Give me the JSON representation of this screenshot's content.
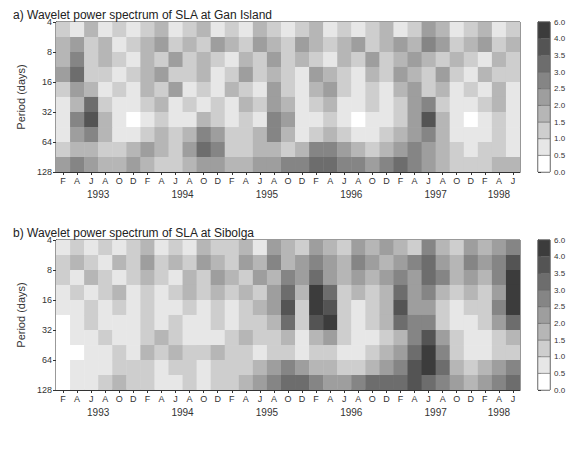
{
  "chart_data": [
    {
      "type": "heatmap",
      "title": "a) Wavelet power spectrum of SLA at Gan Island",
      "ylabel": "Period (days)",
      "log": "y",
      "xlim": [
        0,
        66
      ],
      "xticks": [
        {
          "value": 1,
          "label": "F"
        },
        {
          "value": 3,
          "label": "A"
        },
        {
          "value": 5,
          "label": "J"
        },
        {
          "value": 7,
          "label": "A"
        },
        {
          "value": 9,
          "label": "O"
        },
        {
          "value": 11,
          "label": "D"
        },
        {
          "value": 13,
          "label": "F"
        },
        {
          "value": 15,
          "label": "A"
        },
        {
          "value": 17,
          "label": "J"
        },
        {
          "value": 19,
          "label": "A"
        },
        {
          "value": 21,
          "label": "O"
        },
        {
          "value": 23,
          "label": "D"
        },
        {
          "value": 25,
          "label": "F"
        },
        {
          "value": 27,
          "label": "A"
        },
        {
          "value": 29,
          "label": "J"
        },
        {
          "value": 31,
          "label": "A"
        },
        {
          "value": 33,
          "label": "O"
        },
        {
          "value": 35,
          "label": "D"
        },
        {
          "value": 37,
          "label": "F"
        },
        {
          "value": 39,
          "label": "A"
        },
        {
          "value": 41,
          "label": "J"
        },
        {
          "value": 43,
          "label": "A"
        },
        {
          "value": 45,
          "label": "O"
        },
        {
          "value": 47,
          "label": "D"
        },
        {
          "value": 49,
          "label": "F"
        },
        {
          "value": 51,
          "label": "A"
        },
        {
          "value": 53,
          "label": "J"
        },
        {
          "value": 55,
          "label": "A"
        },
        {
          "value": 57,
          "label": "O"
        },
        {
          "value": 59,
          "label": "D"
        },
        {
          "value": 61,
          "label": "F"
        },
        {
          "value": 63,
          "label": "A"
        },
        {
          "value": 65,
          "label": "J"
        }
      ],
      "annotations": [
        {
          "text": "1993",
          "x": 6
        },
        {
          "text": "1994",
          "x": 18
        },
        {
          "text": "1995",
          "x": 30
        },
        {
          "text": "1996",
          "x": 42
        },
        {
          "text": "1997",
          "x": 54
        },
        {
          "text": "1998",
          "x": 63
        }
      ],
      "ylim": [
        4,
        128
      ],
      "yticks": [
        4,
        8,
        16,
        32,
        64,
        128
      ],
      "x_edges": [
        0,
        2,
        4,
        6,
        8,
        10,
        12,
        14,
        16,
        18,
        20,
        22,
        24,
        26,
        28,
        30,
        32,
        34,
        36,
        38,
        40,
        42,
        44,
        46,
        48,
        50,
        52,
        54,
        56,
        58,
        60,
        62,
        64,
        66
      ],
      "y_edges": [
        4,
        5.66,
        8,
        11.3,
        16,
        22.6,
        32,
        45.3,
        64,
        90.5,
        128
      ],
      "cells": [
        [
          1.0,
          0.5,
          1.5,
          0.5,
          1.0,
          0.5,
          1.0,
          1.5,
          0.5,
          1.0,
          1.5,
          0.5,
          1.0,
          0.5,
          1.5,
          1.0,
          0.5,
          1.0,
          1.5,
          0.5,
          1.0,
          0.5,
          1.0,
          1.5,
          0.5,
          1.0,
          2.0,
          1.5,
          0.5,
          1.0,
          1.5,
          0.5,
          1.0
        ],
        [
          1.5,
          2.0,
          1.0,
          1.5,
          0.5,
          1.0,
          1.5,
          2.0,
          1.0,
          1.5,
          1.0,
          2.0,
          1.5,
          1.0,
          2.0,
          1.5,
          1.0,
          2.0,
          1.5,
          1.0,
          1.5,
          2.0,
          1.0,
          1.5,
          2.0,
          1.5,
          2.5,
          2.0,
          1.0,
          1.5,
          2.0,
          1.0,
          1.5
        ],
        [
          1.5,
          2.5,
          1.0,
          1.5,
          1.0,
          0.5,
          1.5,
          1.0,
          2.0,
          1.0,
          1.5,
          1.0,
          0.5,
          1.5,
          1.0,
          2.0,
          1.0,
          1.5,
          1.0,
          0.5,
          1.5,
          1.0,
          2.0,
          1.0,
          1.5,
          2.0,
          1.5,
          1.0,
          1.5,
          1.0,
          0.5,
          1.5,
          1.0
        ],
        [
          2.0,
          3.0,
          1.0,
          1.0,
          0.5,
          1.0,
          1.5,
          2.0,
          1.0,
          1.0,
          1.5,
          0.5,
          1.0,
          2.0,
          1.0,
          1.5,
          1.0,
          0.5,
          2.0,
          1.5,
          1.0,
          0.5,
          1.5,
          1.0,
          2.0,
          1.5,
          1.0,
          2.0,
          1.0,
          0.5,
          1.5,
          1.0,
          1.0
        ],
        [
          1.0,
          2.0,
          1.5,
          0.5,
          1.0,
          0.5,
          1.5,
          1.0,
          2.0,
          0.5,
          1.0,
          0.5,
          1.5,
          1.0,
          0.5,
          2.0,
          1.0,
          0.5,
          1.5,
          2.0,
          1.0,
          0.5,
          1.0,
          0.5,
          1.5,
          2.0,
          1.0,
          1.5,
          0.5,
          1.0,
          0.5,
          1.5,
          0.5
        ],
        [
          0.5,
          1.5,
          3.0,
          1.0,
          0.5,
          0.5,
          1.0,
          1.5,
          0.5,
          1.0,
          0.5,
          1.0,
          0.5,
          1.5,
          1.0,
          2.0,
          1.5,
          0.5,
          1.0,
          1.5,
          0.5,
          0.5,
          1.0,
          0.5,
          1.0,
          2.0,
          2.5,
          1.0,
          0.5,
          0.5,
          1.0,
          1.5,
          0.5
        ],
        [
          0.5,
          2.5,
          3.5,
          1.5,
          0.5,
          0.0,
          0.5,
          1.0,
          0.5,
          0.5,
          1.5,
          1.0,
          0.5,
          1.0,
          0.5,
          2.5,
          2.0,
          0.5,
          0.5,
          1.0,
          0.5,
          0.0,
          0.5,
          0.5,
          1.0,
          2.0,
          3.5,
          1.5,
          0.5,
          0.0,
          0.5,
          1.0,
          0.5
        ],
        [
          0.5,
          2.0,
          2.5,
          1.5,
          0.5,
          0.5,
          1.0,
          1.5,
          1.0,
          1.5,
          2.5,
          2.0,
          1.0,
          1.0,
          1.5,
          2.5,
          1.5,
          0.5,
          1.0,
          1.5,
          1.0,
          0.5,
          0.5,
          1.0,
          1.5,
          2.0,
          2.5,
          1.5,
          0.5,
          0.5,
          0.5,
          1.0,
          0.5
        ],
        [
          1.0,
          1.5,
          1.5,
          1.0,
          1.0,
          1.5,
          2.0,
          1.5,
          1.0,
          2.0,
          3.0,
          2.5,
          1.0,
          1.0,
          1.5,
          1.5,
          1.0,
          1.5,
          2.5,
          2.5,
          2.0,
          1.5,
          1.0,
          1.5,
          2.0,
          2.5,
          2.0,
          1.5,
          1.0,
          0.5,
          1.0,
          1.0,
          0.5
        ],
        [
          2.0,
          2.5,
          2.0,
          1.5,
          1.5,
          2.0,
          1.5,
          1.0,
          1.0,
          1.5,
          2.0,
          2.0,
          1.5,
          1.5,
          2.0,
          2.0,
          2.5,
          2.5,
          3.0,
          3.0,
          2.5,
          2.5,
          2.0,
          2.5,
          3.0,
          2.5,
          2.0,
          1.5,
          1.0,
          1.0,
          1.0,
          1.5,
          1.5
        ]
      ],
      "colorbar": {
        "range": [
          0,
          6
        ],
        "ticks": [
          {
            "value": 0,
            "label": "0.0"
          },
          {
            "value": 0.5,
            "label": "0.5"
          },
          {
            "value": 1,
            "label": "1.0"
          },
          {
            "value": 1.5,
            "label": "1.5"
          },
          {
            "value": 2,
            "label": "2.0"
          },
          {
            "value": 2.5,
            "label": "2.5"
          },
          {
            "value": 3,
            "label": "3.0"
          },
          {
            "value": 3.5,
            "label": "3.5"
          },
          {
            "value": 4,
            "label": "4.0"
          },
          {
            "value": 6,
            "label": "6.0"
          }
        ]
      }
    },
    {
      "type": "heatmap",
      "title": "b) Wavelet power spectrum of SLA at Sibolga",
      "ylabel": "Period (days)",
      "log": "y",
      "xlim": [
        0,
        66
      ],
      "xticks": [
        {
          "value": 1,
          "label": "F"
        },
        {
          "value": 3,
          "label": "A"
        },
        {
          "value": 5,
          "label": "J"
        },
        {
          "value": 7,
          "label": "A"
        },
        {
          "value": 9,
          "label": "O"
        },
        {
          "value": 11,
          "label": "D"
        },
        {
          "value": 13,
          "label": "F"
        },
        {
          "value": 15,
          "label": "A"
        },
        {
          "value": 17,
          "label": "J"
        },
        {
          "value": 19,
          "label": "A"
        },
        {
          "value": 21,
          "label": "O"
        },
        {
          "value": 23,
          "label": "D"
        },
        {
          "value": 25,
          "label": "F"
        },
        {
          "value": 27,
          "label": "A"
        },
        {
          "value": 29,
          "label": "J"
        },
        {
          "value": 31,
          "label": "A"
        },
        {
          "value": 33,
          "label": "O"
        },
        {
          "value": 35,
          "label": "D"
        },
        {
          "value": 37,
          "label": "F"
        },
        {
          "value": 39,
          "label": "A"
        },
        {
          "value": 41,
          "label": "J"
        },
        {
          "value": 43,
          "label": "A"
        },
        {
          "value": 45,
          "label": "O"
        },
        {
          "value": 47,
          "label": "D"
        },
        {
          "value": 49,
          "label": "F"
        },
        {
          "value": 51,
          "label": "A"
        },
        {
          "value": 53,
          "label": "J"
        },
        {
          "value": 55,
          "label": "A"
        },
        {
          "value": 57,
          "label": "O"
        },
        {
          "value": 59,
          "label": "D"
        },
        {
          "value": 61,
          "label": "F"
        },
        {
          "value": 63,
          "label": "A"
        },
        {
          "value": 65,
          "label": "J"
        }
      ],
      "annotations": [
        {
          "text": "1993",
          "x": 6
        },
        {
          "text": "1994",
          "x": 18
        },
        {
          "text": "1995",
          "x": 30
        },
        {
          "text": "1996",
          "x": 42
        },
        {
          "text": "1997",
          "x": 54
        },
        {
          "text": "1998",
          "x": 63
        }
      ],
      "ylim": [
        4,
        128
      ],
      "yticks": [
        4,
        8,
        16,
        32,
        64,
        128
      ],
      "x_edges": [
        0,
        2,
        4,
        6,
        8,
        10,
        12,
        14,
        16,
        18,
        20,
        22,
        24,
        26,
        28,
        30,
        32,
        34,
        36,
        38,
        40,
        42,
        44,
        46,
        48,
        50,
        52,
        54,
        56,
        58,
        60,
        62,
        64,
        66
      ],
      "y_edges": [
        4,
        5.66,
        8,
        11.3,
        16,
        22.6,
        32,
        45.3,
        64,
        90.5,
        128
      ],
      "cells": [
        [
          0.5,
          1.0,
          0.5,
          1.0,
          0.5,
          1.0,
          1.5,
          0.5,
          1.0,
          0.5,
          1.5,
          1.0,
          1.0,
          1.5,
          0.5,
          2.0,
          1.5,
          1.0,
          2.0,
          1.5,
          1.0,
          2.0,
          1.5,
          2.0,
          1.5,
          1.0,
          2.5,
          1.5,
          1.0,
          2.0,
          1.5,
          2.0,
          2.5
        ],
        [
          1.0,
          1.5,
          1.0,
          0.5,
          1.5,
          1.0,
          2.0,
          1.0,
          1.5,
          1.0,
          2.0,
          1.5,
          1.0,
          2.0,
          1.5,
          2.5,
          1.5,
          2.0,
          2.5,
          2.0,
          1.5,
          2.5,
          2.0,
          1.5,
          2.0,
          2.5,
          3.0,
          2.0,
          1.5,
          2.5,
          2.0,
          2.5,
          3.5
        ],
        [
          1.0,
          0.5,
          1.5,
          1.0,
          0.5,
          1.0,
          1.5,
          1.0,
          0.5,
          1.5,
          1.0,
          2.0,
          1.5,
          1.0,
          2.0,
          1.5,
          2.5,
          2.0,
          3.0,
          2.0,
          1.5,
          2.0,
          1.5,
          2.0,
          2.5,
          2.0,
          3.0,
          2.5,
          1.5,
          2.0,
          1.5,
          2.5,
          4.0
        ],
        [
          0.5,
          1.0,
          0.5,
          1.0,
          1.5,
          0.5,
          1.0,
          0.5,
          1.0,
          1.5,
          1.0,
          1.5,
          1.0,
          1.5,
          1.0,
          2.0,
          3.0,
          1.5,
          6.0,
          3.0,
          1.0,
          1.5,
          1.0,
          1.5,
          3.0,
          2.0,
          2.5,
          1.5,
          1.0,
          1.5,
          1.0,
          2.0,
          6.0
        ],
        [
          0.5,
          0.5,
          1.0,
          0.5,
          1.0,
          0.5,
          1.0,
          0.5,
          0.5,
          1.0,
          0.5,
          1.0,
          0.5,
          1.0,
          1.5,
          2.0,
          3.5,
          1.0,
          4.0,
          3.5,
          1.0,
          0.5,
          1.0,
          1.5,
          3.5,
          2.0,
          2.0,
          1.0,
          0.5,
          1.0,
          1.0,
          2.5,
          4.0
        ],
        [
          0.0,
          0.5,
          1.0,
          0.5,
          0.5,
          0.5,
          1.0,
          0.5,
          1.0,
          0.5,
          0.5,
          1.0,
          0.5,
          1.0,
          1.0,
          1.5,
          3.0,
          1.0,
          3.5,
          4.0,
          1.0,
          0.5,
          1.0,
          1.5,
          3.0,
          2.5,
          2.5,
          1.0,
          0.5,
          0.5,
          1.0,
          2.0,
          3.0
        ],
        [
          0.0,
          0.5,
          0.5,
          1.0,
          0.5,
          0.5,
          1.0,
          1.5,
          1.0,
          0.5,
          0.5,
          0.5,
          1.0,
          1.5,
          1.0,
          1.0,
          1.5,
          0.5,
          1.5,
          2.0,
          1.0,
          0.5,
          0.5,
          1.0,
          1.5,
          2.5,
          3.5,
          2.0,
          1.0,
          0.5,
          0.5,
          1.0,
          1.5
        ],
        [
          0.0,
          0.0,
          0.5,
          0.5,
          1.0,
          0.5,
          1.5,
          1.0,
          1.5,
          1.0,
          1.0,
          1.5,
          1.0,
          1.0,
          0.5,
          1.0,
          1.0,
          0.5,
          1.0,
          1.0,
          0.5,
          0.5,
          1.0,
          1.5,
          2.0,
          3.0,
          4.0,
          2.5,
          1.0,
          0.5,
          0.5,
          1.0,
          1.0
        ],
        [
          0.0,
          0.5,
          0.5,
          0.5,
          1.0,
          1.0,
          1.0,
          0.5,
          1.0,
          1.0,
          0.5,
          1.0,
          1.0,
          1.0,
          1.5,
          2.0,
          2.5,
          2.0,
          1.5,
          1.5,
          1.0,
          1.0,
          1.5,
          2.0,
          2.5,
          3.5,
          4.0,
          3.0,
          1.5,
          1.0,
          1.5,
          2.0,
          2.5
        ],
        [
          0.0,
          0.5,
          0.5,
          1.0,
          1.5,
          1.0,
          1.0,
          0.5,
          0.5,
          1.0,
          0.5,
          1.0,
          1.0,
          1.5,
          2.0,
          2.5,
          3.0,
          3.0,
          2.5,
          2.0,
          2.0,
          2.5,
          3.0,
          3.0,
          3.0,
          3.5,
          3.0,
          2.5,
          2.0,
          1.5,
          2.0,
          2.5,
          3.0
        ]
      ],
      "colorbar": {
        "range": [
          0,
          6
        ],
        "ticks": [
          {
            "value": 0,
            "label": "0.0"
          },
          {
            "value": 0.5,
            "label": "0.5"
          },
          {
            "value": 1,
            "label": "1.0"
          },
          {
            "value": 1.5,
            "label": "1.5"
          },
          {
            "value": 2,
            "label": "2.0"
          },
          {
            "value": 2.5,
            "label": "2.5"
          },
          {
            "value": 3,
            "label": "3.0"
          },
          {
            "value": 3.5,
            "label": "3.5"
          },
          {
            "value": 4,
            "label": "4.0"
          },
          {
            "value": 6,
            "label": "6.0"
          }
        ]
      }
    }
  ]
}
